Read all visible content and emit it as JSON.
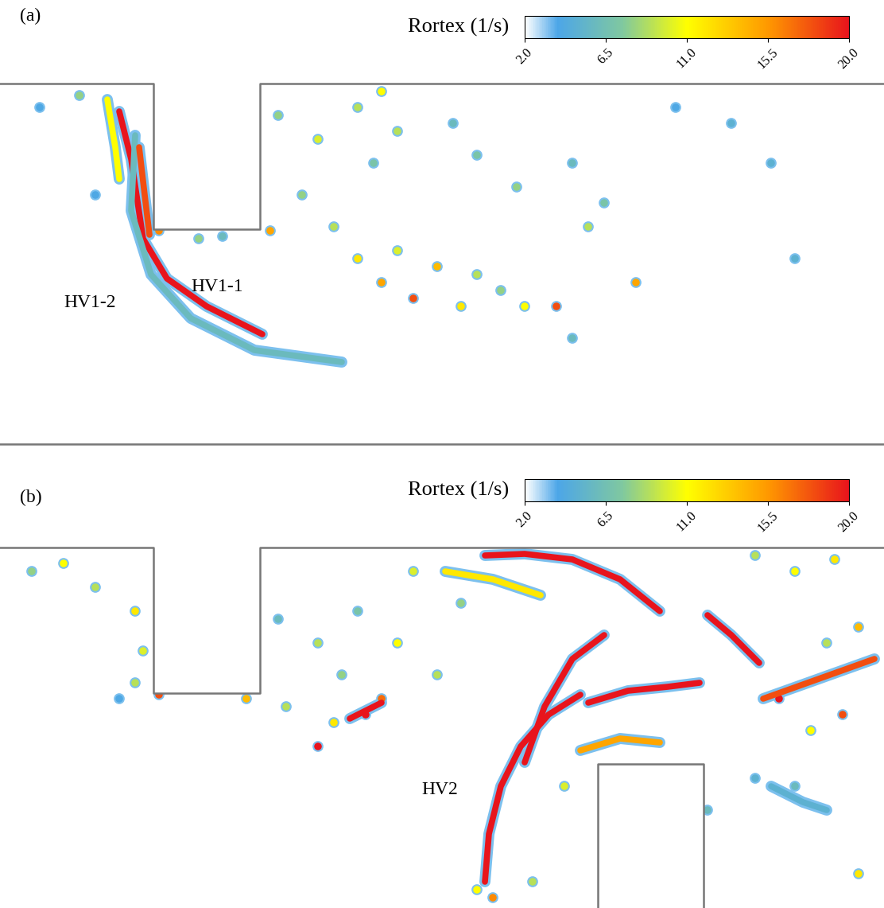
{
  "chart_data": [
    {
      "type": "contour",
      "title": "(a)",
      "colorbar": {
        "label": "Rortex (1/s)",
        "range": [
          2.0,
          20.0
        ],
        "ticks": [
          {
            "value": 2.0,
            "label": "2.0"
          },
          {
            "value": 6.5,
            "label": "6.5"
          },
          {
            "value": 11.0,
            "label": "11.0"
          },
          {
            "value": 15.5,
            "label": "15.5"
          },
          {
            "value": 20.0,
            "label": "20.0"
          }
        ]
      },
      "annotations": [
        "HV1-2",
        "HV1-1"
      ],
      "vortices": [
        {
          "points": [
            [
              15,
              -3.5
            ],
            [
              16.5,
              -9.5
            ],
            [
              18,
              -19.5
            ],
            [
              21,
              -24.5
            ],
            [
              26,
              -28
            ],
            [
              33,
              -31.5
            ]
          ],
          "value": 20
        },
        {
          "points": [
            [
              17,
              -6.5
            ],
            [
              16.5,
              -16
            ],
            [
              19,
              -24
            ],
            [
              24,
              -29.5
            ],
            [
              32,
              -33.5
            ],
            [
              43,
              -35
            ]
          ],
          "value": 6
        },
        {
          "points": [
            [
              17.5,
              -8
            ],
            [
              18.2,
              -14
            ],
            [
              18.8,
              -19
            ]
          ],
          "value": 18
        },
        {
          "points": [
            [
              13.5,
              -2
            ],
            [
              14.5,
              -8
            ],
            [
              15,
              -12
            ]
          ],
          "value": 11
        }
      ],
      "blobs": [
        [
          35,
          -4,
          8
        ],
        [
          40,
          -7,
          10
        ],
        [
          45,
          -3,
          9
        ],
        [
          48,
          -1,
          11
        ],
        [
          50,
          -6,
          9
        ],
        [
          47,
          -10,
          7
        ],
        [
          38,
          -14,
          8
        ],
        [
          42,
          -18,
          9
        ],
        [
          45,
          -22,
          12
        ],
        [
          48,
          -25,
          15
        ],
        [
          50,
          -21,
          10
        ],
        [
          52,
          -27,
          18
        ],
        [
          55,
          -23,
          14
        ],
        [
          58,
          -28,
          12
        ],
        [
          60,
          -24,
          9
        ],
        [
          63,
          -26,
          8
        ],
        [
          66,
          -28,
          11
        ],
        [
          70,
          -28,
          18
        ],
        [
          72,
          -32,
          6
        ],
        [
          57,
          -5,
          6
        ],
        [
          60,
          -9,
          7
        ],
        [
          65,
          -13,
          8
        ],
        [
          72,
          -10,
          6
        ],
        [
          74,
          -18,
          9
        ],
        [
          80,
          -25,
          15
        ],
        [
          76,
          -15,
          7
        ],
        [
          92,
          -5,
          5
        ],
        [
          97,
          -10,
          5
        ],
        [
          100,
          -22,
          5
        ],
        [
          85,
          -3,
          4
        ],
        [
          34,
          -18.5,
          15
        ],
        [
          5,
          -3,
          4
        ],
        [
          10,
          -1.5,
          8
        ],
        [
          12,
          -14,
          4
        ],
        [
          20,
          -18.5,
          16
        ],
        [
          25,
          -19.5,
          8
        ],
        [
          28,
          -19.2,
          6
        ]
      ]
    },
    {
      "type": "contour",
      "title": "(b)",
      "colorbar": {
        "label": "Rortex (1/s)",
        "range": [
          2.0,
          20.0
        ],
        "ticks": [
          {
            "value": 2.0,
            "label": "2.0"
          },
          {
            "value": 6.5,
            "label": "6.5"
          },
          {
            "value": 11.0,
            "label": "11.0"
          },
          {
            "value": 15.5,
            "label": "15.5"
          },
          {
            "value": 20.0,
            "label": "20.0"
          }
        ]
      },
      "annotations": [
        "HV2"
      ],
      "vortices": [
        {
          "points": [
            [
              61,
              -42
            ],
            [
              61.5,
              -36
            ],
            [
              63,
              -30
            ],
            [
              65.5,
              -25
            ],
            [
              69,
              -21
            ],
            [
              73,
              -18.5
            ]
          ],
          "value": 20
        },
        {
          "points": [
            [
              61,
              -1
            ],
            [
              66,
              -0.8
            ],
            [
              72,
              -1.5
            ],
            [
              78,
              -4
            ],
            [
              83,
              -8
            ]
          ],
          "value": 20
        },
        {
          "points": [
            [
              89,
              -8.5
            ],
            [
              92,
              -11
            ],
            [
              95.5,
              -14.5
            ]
          ],
          "value": 20
        },
        {
          "points": [
            [
              74,
              -19.5
            ],
            [
              79,
              -18
            ],
            [
              84,
              -17.5
            ],
            [
              88,
              -17
            ]
          ],
          "value": 20
        },
        {
          "points": [
            [
              66,
              -27
            ],
            [
              68.5,
              -20
            ],
            [
              72,
              -14
            ],
            [
              76,
              -11
            ]
          ],
          "value": 20
        },
        {
          "points": [
            [
              73,
              -25.5
            ],
            [
              78,
              -24
            ],
            [
              83,
              -24.5
            ]
          ],
          "value": 15
        },
        {
          "points": [
            [
              96,
              -19
            ],
            [
              103,
              -16.5
            ],
            [
              110,
              -14
            ]
          ],
          "value": 18
        },
        {
          "points": [
            [
              44,
              -21.5
            ],
            [
              48,
              -19.5
            ]
          ],
          "value": 20
        },
        {
          "points": [
            [
              56,
              -3
            ],
            [
              62,
              -4
            ],
            [
              68,
              -6
            ]
          ],
          "value": 12
        },
        {
          "points": [
            [
              97,
              -30
            ],
            [
              101,
              -32
            ],
            [
              104,
              -33
            ]
          ],
          "value": 5
        }
      ],
      "blobs": [
        [
          4,
          -3,
          8
        ],
        [
          8,
          -2,
          11
        ],
        [
          12,
          -5,
          9
        ],
        [
          17,
          -8,
          12
        ],
        [
          18,
          -13,
          10
        ],
        [
          17,
          -17,
          9
        ],
        [
          15,
          -19,
          4
        ],
        [
          20,
          -18.5,
          18
        ],
        [
          31,
          -19,
          14
        ],
        [
          36,
          -20,
          9
        ],
        [
          40,
          -25,
          20
        ],
        [
          42,
          -22,
          12
        ],
        [
          46,
          -21,
          20
        ],
        [
          48,
          -19,
          17
        ],
        [
          43,
          -16,
          8
        ],
        [
          40,
          -12,
          9
        ],
        [
          35,
          -9,
          6
        ],
        [
          45,
          -8,
          7
        ],
        [
          50,
          -12,
          11
        ],
        [
          55,
          -16,
          9
        ],
        [
          52,
          -3,
          10
        ],
        [
          58,
          -7,
          8
        ],
        [
          95,
          -1,
          9
        ],
        [
          100,
          -3,
          11
        ],
        [
          105,
          -1.5,
          12
        ],
        [
          108,
          -10,
          14
        ],
        [
          104,
          -12,
          9
        ],
        [
          98,
          -19,
          20
        ],
        [
          102,
          -23,
          11
        ],
        [
          106,
          -21,
          18
        ],
        [
          95,
          -29,
          5
        ],
        [
          100,
          -30,
          6
        ],
        [
          108,
          -41,
          12
        ],
        [
          60,
          -43,
          11
        ],
        [
          62,
          -44,
          16
        ],
        [
          67,
          -42,
          9
        ],
        [
          71,
          -30,
          10
        ],
        [
          89,
          -33,
          6
        ]
      ]
    }
  ]
}
